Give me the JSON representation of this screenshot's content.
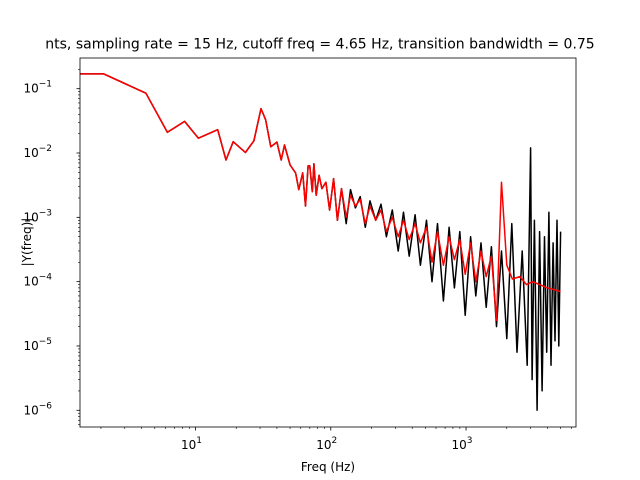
{
  "chart_data": {
    "type": "line",
    "title": "nts, sampling rate = 15 Hz, cutoff freq = 4.65 Hz, transition bandwidth = 0.75",
    "xlabel": "Freq (Hz)",
    "ylabel": "|Y(freq)|",
    "xscale": "log",
    "yscale": "log",
    "xlim": [
      1.4,
      6500
    ],
    "ylim": [
      5.5e-07,
      0.3
    ],
    "x_ticks": [
      {
        "value": 10,
        "base": "10",
        "exp": "1"
      },
      {
        "value": 100,
        "base": "10",
        "exp": "2"
      },
      {
        "value": 1000,
        "base": "10",
        "exp": "3"
      }
    ],
    "y_ticks": [
      {
        "value": 1e-06,
        "base": "10",
        "exp": "−6"
      },
      {
        "value": 1e-05,
        "base": "10",
        "exp": "−5"
      },
      {
        "value": 0.0001,
        "base": "10",
        "exp": "−4"
      },
      {
        "value": 0.001,
        "base": "10",
        "exp": "−3"
      },
      {
        "value": 0.01,
        "base": "10",
        "exp": "−2"
      },
      {
        "value": 0.1,
        "base": "10",
        "exp": "−1"
      }
    ],
    "grid": false,
    "legend": "none",
    "series": [
      {
        "color": "#000000",
        "x": [
          1.0,
          2.1,
          4.3,
          6.2,
          8.3,
          10.5,
          14.6,
          16.8,
          19.0,
          23.4,
          27.0,
          30.5,
          33.0,
          36.0,
          40.0,
          43.0,
          45.5,
          50.0,
          55.0,
          58.0,
          62.0,
          65.0,
          68.0,
          70.0,
          73.0,
          75.0,
          78.0,
          82.0,
          86.0,
          92.0,
          98.0,
          105.0,
          112.0,
          120.0,
          130.0,
          140.0,
          152.0,
          165.0,
          180.0,
          195.0,
          215.0,
          235.0,
          258.0,
          285.0,
          315.0,
          345.0,
          380.0,
          420.0,
          460.0,
          510.0,
          560.0,
          615.0,
          680.0,
          750.0,
          820.0,
          900.0,
          985.0,
          1080.0,
          1180.0,
          1290.0,
          1410.0,
          1540.0,
          1680.0,
          1830.0,
          2000.0,
          2180.0,
          2380.0,
          2600.0,
          2830.0,
          3000.0,
          3080.0,
          3200.0,
          3350.0,
          3500.0,
          3650.0,
          3800.0,
          3950.0,
          4100.0,
          4250.0,
          4400.0,
          4550.0,
          4700.0,
          4850.0,
          5000.0
        ],
        "y": [
          0.17,
          0.17,
          0.085,
          0.021,
          0.031,
          0.017,
          0.023,
          0.0078,
          0.015,
          0.0102,
          0.0155,
          0.049,
          0.033,
          0.0125,
          0.0148,
          0.0078,
          0.0133,
          0.0065,
          0.0049,
          0.0027,
          0.0049,
          0.0015,
          0.0063,
          0.0063,
          0.0025,
          0.0068,
          0.0022,
          0.0045,
          0.0028,
          0.0035,
          0.0013,
          0.004,
          0.0009,
          0.0028,
          0.0008,
          0.0027,
          0.0014,
          0.0021,
          0.0007,
          0.0018,
          0.0009,
          0.0016,
          0.0005,
          0.0013,
          0.0003,
          0.0012,
          0.00025,
          0.0011,
          0.00018,
          0.0009,
          0.0001,
          0.0008,
          5e-05,
          0.0007,
          8e-05,
          0.0006,
          3e-05,
          0.0005,
          6e-05,
          0.0004,
          4e-05,
          0.00035,
          2e-05,
          0.0003,
          1.3e-05,
          0.0008,
          8e-06,
          0.0003,
          5e-06,
          0.012,
          3e-06,
          0.0009,
          1e-06,
          0.0006,
          2e-06,
          0.0005,
          8e-06,
          0.0012,
          5e-06,
          0.0004,
          1.2e-05,
          0.0009,
          1e-05,
          0.0006
        ]
      },
      {
        "color": "#ff0000",
        "x": [
          1.0,
          2.1,
          4.3,
          6.2,
          8.3,
          10.5,
          14.6,
          16.8,
          19.0,
          23.4,
          27.0,
          30.5,
          33.0,
          36.0,
          40.0,
          43.0,
          45.5,
          50.0,
          55.0,
          58.0,
          62.0,
          65.0,
          68.0,
          70.0,
          73.0,
          75.0,
          78.0,
          82.0,
          86.0,
          92.0,
          98.0,
          105.0,
          112.0,
          120.0,
          130.0,
          140.0,
          152.0,
          165.0,
          180.0,
          195.0,
          215.0,
          235.0,
          258.0,
          285.0,
          315.0,
          345.0,
          380.0,
          420.0,
          460.0,
          510.0,
          560.0,
          615.0,
          680.0,
          750.0,
          820.0,
          900.0,
          985.0,
          1080.0,
          1180.0,
          1290.0,
          1410.0,
          1540.0,
          1680.0,
          1830.0,
          2000.0,
          2200.0,
          2500.0,
          2800.0,
          3100.0,
          3500.0,
          4000.0,
          4500.0,
          5000.0
        ],
        "y": [
          0.17,
          0.17,
          0.085,
          0.021,
          0.031,
          0.017,
          0.023,
          0.0078,
          0.015,
          0.0102,
          0.0155,
          0.049,
          0.033,
          0.0125,
          0.0148,
          0.0078,
          0.0133,
          0.0065,
          0.0049,
          0.0027,
          0.0049,
          0.0015,
          0.0063,
          0.0063,
          0.0025,
          0.0068,
          0.0022,
          0.0045,
          0.0028,
          0.0035,
          0.0013,
          0.004,
          0.0009,
          0.0028,
          0.001,
          0.0022,
          0.0015,
          0.0019,
          0.0008,
          0.0015,
          0.0009,
          0.0013,
          0.0006,
          0.001,
          0.0005,
          0.0009,
          0.00045,
          0.0008,
          0.0004,
          0.0007,
          0.0002,
          0.0006,
          0.00018,
          0.0005,
          0.00022,
          0.00045,
          0.00013,
          0.0004,
          0.0001,
          0.0003,
          0.00012,
          0.00025,
          2.5e-05,
          0.0035,
          0.00018,
          0.00011,
          0.00012,
          9e-05,
          0.0001,
          9e-05,
          8e-05,
          7.5e-05,
          7e-05
        ]
      }
    ]
  }
}
